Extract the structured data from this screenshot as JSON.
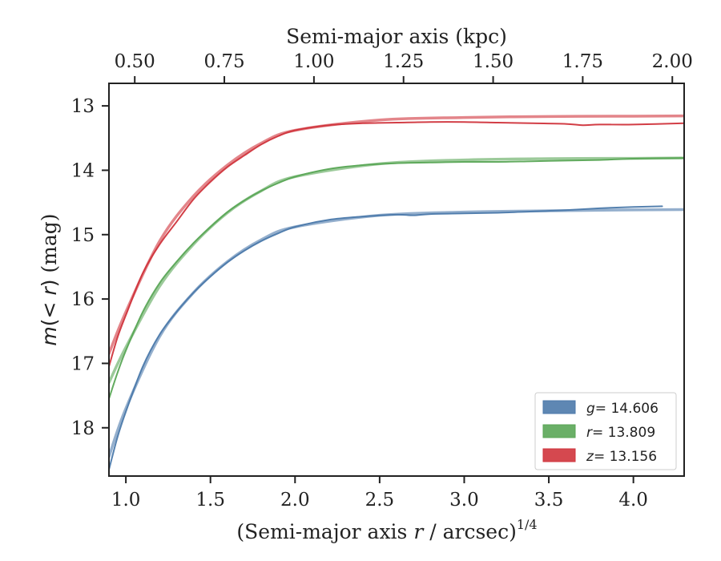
{
  "chart_data": {
    "type": "line",
    "xlabel": "(Semi-major axis r / arcsec)",
    "xlabel_prefix": "(Semi-major axis ",
    "xlabel_var": "r",
    "xlabel_suffix": " / arcsec)",
    "xlabel_exponent": "1/4",
    "top_xlabel": "Semi-major axis (kpc)",
    "ylabel_var": "m",
    "ylabel_middle": "(< ",
    "ylabel_close": ")",
    "ylabel_r": "r",
    "ylabel_unit": " (mag)",
    "xlim": [
      0.9,
      4.3
    ],
    "ylim": [
      18.75,
      12.65
    ],
    "y_inverted": true,
    "top_xlim": [
      0.428,
      2.033
    ],
    "x_ticks": [
      1.0,
      1.5,
      2.0,
      2.5,
      3.0,
      3.5,
      4.0
    ],
    "x_tick_labels": [
      "1.0",
      "1.5",
      "2.0",
      "2.5",
      "3.0",
      "3.5",
      "4.0"
    ],
    "y_ticks": [
      13,
      14,
      15,
      16,
      17,
      18
    ],
    "y_tick_labels": [
      "13",
      "14",
      "15",
      "16",
      "17",
      "18"
    ],
    "top_x_ticks": [
      0.5,
      0.75,
      1.0,
      1.25,
      1.5,
      1.75,
      2.0
    ],
    "top_x_tick_labels": [
      "0.50",
      "0.75",
      "1.00",
      "1.25",
      "1.50",
      "1.75",
      "2.00"
    ],
    "legend_position": "lower right",
    "grid": false,
    "series": [
      {
        "name": "g = 14.606",
        "band": "g",
        "total": "= 14.606",
        "color": "#4c7aab",
        "data": [
          [
            0.9,
            18.65
          ],
          [
            0.95,
            18.15
          ],
          [
            1.0,
            17.75
          ],
          [
            1.1,
            17.05
          ],
          [
            1.2,
            16.55
          ],
          [
            1.3,
            16.2
          ],
          [
            1.4,
            15.9
          ],
          [
            1.5,
            15.65
          ],
          [
            1.6,
            15.43
          ],
          [
            1.7,
            15.25
          ],
          [
            1.8,
            15.1
          ],
          [
            1.9,
            14.98
          ],
          [
            2.0,
            14.88
          ],
          [
            2.2,
            14.77
          ],
          [
            2.4,
            14.72
          ],
          [
            2.6,
            14.69
          ],
          [
            2.7,
            14.7
          ],
          [
            2.8,
            14.68
          ],
          [
            3.0,
            14.67
          ],
          [
            3.2,
            14.66
          ],
          [
            3.4,
            14.64
          ],
          [
            3.6,
            14.62
          ],
          [
            3.8,
            14.59
          ],
          [
            4.0,
            14.57
          ],
          [
            4.17,
            14.56
          ]
        ],
        "model": [
          [
            0.9,
            18.45
          ],
          [
            1.0,
            17.7
          ],
          [
            1.2,
            16.58
          ],
          [
            1.4,
            15.9
          ],
          [
            1.6,
            15.42
          ],
          [
            1.8,
            15.08
          ],
          [
            2.0,
            14.88
          ],
          [
            2.5,
            14.7
          ],
          [
            3.0,
            14.65
          ],
          [
            3.5,
            14.63
          ],
          [
            4.0,
            14.615
          ],
          [
            4.3,
            14.61
          ]
        ]
      },
      {
        "name": "r = 13.809",
        "band": "r",
        "total": "= 13.809",
        "color": "#5aa656",
        "data": [
          [
            0.9,
            17.55
          ],
          [
            0.95,
            17.15
          ],
          [
            1.0,
            16.8
          ],
          [
            1.1,
            16.2
          ],
          [
            1.2,
            15.75
          ],
          [
            1.3,
            15.42
          ],
          [
            1.4,
            15.13
          ],
          [
            1.5,
            14.88
          ],
          [
            1.6,
            14.65
          ],
          [
            1.7,
            14.47
          ],
          [
            1.8,
            14.32
          ],
          [
            1.9,
            14.2
          ],
          [
            2.0,
            14.1
          ],
          [
            2.2,
            13.98
          ],
          [
            2.4,
            13.92
          ],
          [
            2.6,
            13.89
          ],
          [
            2.8,
            13.88
          ],
          [
            3.0,
            13.87
          ],
          [
            3.2,
            13.87
          ],
          [
            3.4,
            13.86
          ],
          [
            3.6,
            13.85
          ],
          [
            3.8,
            13.84
          ],
          [
            4.0,
            13.82
          ],
          [
            4.3,
            13.81
          ]
        ],
        "model": [
          [
            0.9,
            17.3
          ],
          [
            1.0,
            16.75
          ],
          [
            1.2,
            15.8
          ],
          [
            1.4,
            15.15
          ],
          [
            1.6,
            14.66
          ],
          [
            1.8,
            14.32
          ],
          [
            2.0,
            14.1
          ],
          [
            2.5,
            13.9
          ],
          [
            3.0,
            13.84
          ],
          [
            3.5,
            13.82
          ],
          [
            4.0,
            13.815
          ],
          [
            4.3,
            13.81
          ]
        ]
      },
      {
        "name": "z = 13.156",
        "band": "z",
        "total": "= 13.156",
        "color": "#d0343c",
        "data": [
          [
            0.9,
            17.05
          ],
          [
            0.95,
            16.6
          ],
          [
            1.0,
            16.25
          ],
          [
            1.1,
            15.6
          ],
          [
            1.2,
            15.15
          ],
          [
            1.3,
            14.8
          ],
          [
            1.4,
            14.45
          ],
          [
            1.5,
            14.18
          ],
          [
            1.6,
            13.95
          ],
          [
            1.7,
            13.77
          ],
          [
            1.8,
            13.6
          ],
          [
            1.9,
            13.47
          ],
          [
            2.0,
            13.38
          ],
          [
            2.2,
            13.3
          ],
          [
            2.4,
            13.27
          ],
          [
            2.6,
            13.26
          ],
          [
            2.8,
            13.25
          ],
          [
            3.0,
            13.25
          ],
          [
            3.2,
            13.26
          ],
          [
            3.4,
            13.27
          ],
          [
            3.6,
            13.28
          ],
          [
            3.7,
            13.3
          ],
          [
            3.8,
            13.29
          ],
          [
            4.0,
            13.29
          ],
          [
            4.3,
            13.27
          ]
        ],
        "model": [
          [
            0.9,
            16.85
          ],
          [
            1.0,
            16.2
          ],
          [
            1.2,
            15.1
          ],
          [
            1.4,
            14.4
          ],
          [
            1.6,
            13.92
          ],
          [
            1.8,
            13.58
          ],
          [
            2.0,
            13.38
          ],
          [
            2.5,
            13.22
          ],
          [
            3.0,
            13.18
          ],
          [
            3.5,
            13.165
          ],
          [
            4.0,
            13.16
          ],
          [
            4.3,
            13.156
          ]
        ]
      }
    ]
  }
}
